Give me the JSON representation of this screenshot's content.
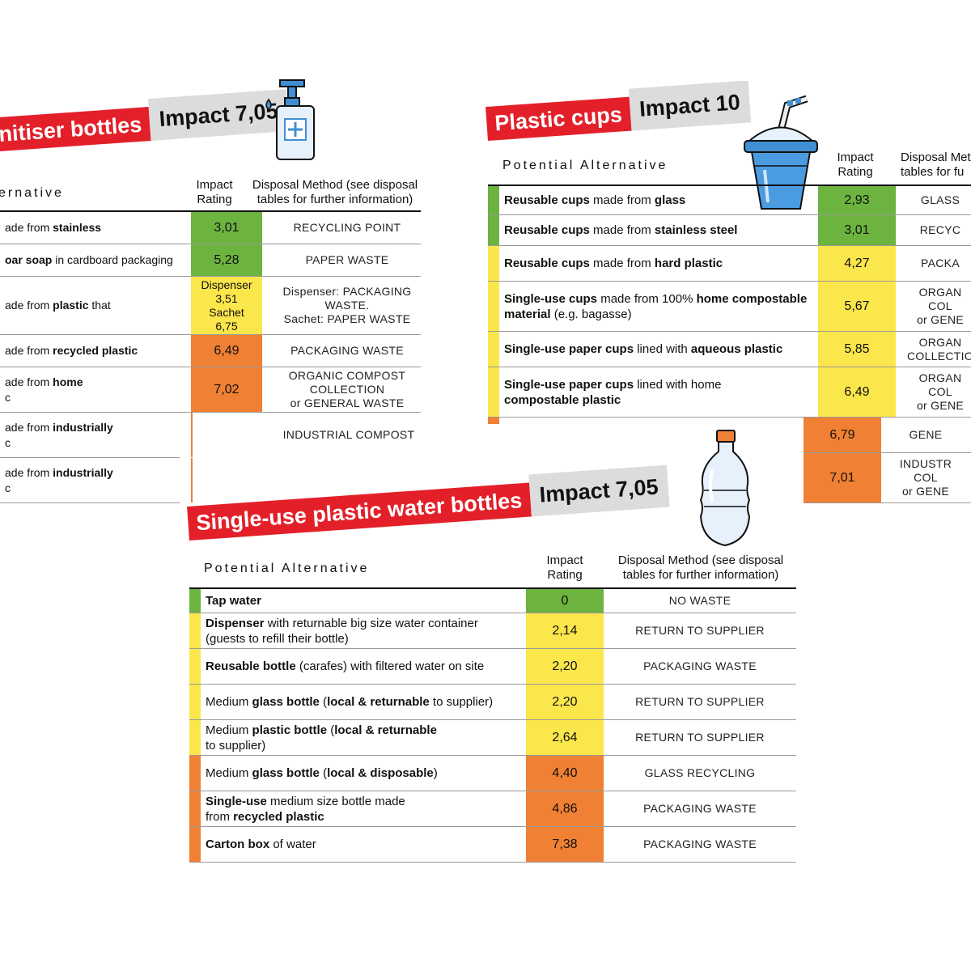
{
  "colors": {
    "green": "#6cb33f",
    "yellow": "#fbe64b",
    "orange": "#f08033",
    "red": "#e3202a",
    "grey": "#dcdcdc"
  },
  "sanitiser": {
    "title": "nitiser bottles",
    "impact": "Impact 7,05",
    "header_alt": "ernative",
    "header_rating": "Impact\nRating",
    "header_disposal": "Disposal Method (see disposal\ntables for further information)",
    "rows": [
      {
        "pre": "ade from ",
        "bold": "stainless",
        "post": "",
        "line2": "",
        "rating": "3,01",
        "level": "green",
        "disposal": "RECYCLING POINT"
      },
      {
        "pre": "",
        "bold": "oar soap",
        "post": " in cardboard packaging",
        "line2": "",
        "rating": "5,28",
        "level": "green",
        "disposal": "PAPER WASTE"
      },
      {
        "pre": "ade from ",
        "bold": "plastic",
        "post": " that",
        "line2": "",
        "rating": "Dispenser\n3,51\nSachet\n6,75",
        "level": "yellow",
        "disposal": "Dispenser: PACKAGING WASTE.\nSachet: PAPER WASTE"
      },
      {
        "pre": "ade from ",
        "bold": "recycled plastic",
        "post": "",
        "line2": "",
        "rating": "6,49",
        "level": "orange",
        "disposal": "PACKAGING WASTE"
      },
      {
        "pre": "ade from  ",
        "bold": "home",
        "post": "",
        "line2": "c",
        "rating": "7,02",
        "level": "orange",
        "disposal": "ORGANIC COMPOST\nCOLLECTION\nor GENERAL WASTE"
      },
      {
        "pre": "ade from ",
        "bold": "industrially",
        "post": "",
        "line2": "c",
        "rating": "",
        "level": "orange",
        "disposal": "INDUSTRIAL COMPOST"
      },
      {
        "pre": "ade from ",
        "bold": "industrially",
        "post": "",
        "line2": "c",
        "rating": "",
        "level": "orange",
        "disposal": ""
      }
    ]
  },
  "cups": {
    "title": "Plastic cups",
    "impact": "Impact 10",
    "header_alt": "Potential Alternative",
    "header_rating": "Impact\nRating",
    "header_disposal": "Disposal Met\ntables for fu",
    "rows": [
      {
        "pre": "",
        "bold": "Reusable cups",
        "mid": " made from ",
        "bold2": "glass",
        "post": "",
        "line2": "",
        "rating": "2,93",
        "level": "green",
        "disposal": "GLASS"
      },
      {
        "pre": "",
        "bold": "Reusable cups",
        "mid": " made from ",
        "bold2": "stainless steel",
        "post": "",
        "line2": "",
        "rating": "3,01",
        "level": "green",
        "disposal": "RECYC"
      },
      {
        "pre": "",
        "bold": "Reusable cups",
        "mid": " made from ",
        "bold2": "hard plastic",
        "post": "",
        "line2": "",
        "rating": "4,27",
        "level": "yellow",
        "disposal": "PACKA"
      },
      {
        "pre": "",
        "bold": "Single-use cups",
        "mid": " made from 100% ",
        "bold2": "home compostable",
        "post": "",
        "line2b": "material",
        "line2": " (e.g. bagasse)",
        "rating": "5,67",
        "level": "yellow",
        "disposal": "ORGAN\nCOL\nor GENE"
      },
      {
        "pre": "",
        "bold": "Single-use paper cups",
        "mid": " lined with ",
        "bold2": "aqueous plastic",
        "post": "",
        "line2": "",
        "rating": "5,85",
        "level": "yellow",
        "disposal": "ORGAN\nCOLLECTIO"
      },
      {
        "pre": "",
        "bold": "Single-use paper cups",
        "mid": " lined with home",
        "bold2": "",
        "post": "",
        "line2b": "compostable plastic",
        "line2": "",
        "rating": "6,49",
        "level": "yellow",
        "disposal": "ORGAN\nCOL\nor GENE"
      },
      {
        "rating": "6,79",
        "level": "orange",
        "disposal": "GENE"
      },
      {
        "rating": "7,01",
        "level": "orange",
        "disposal": "INDUSTR\nCOL\nor GENE"
      }
    ]
  },
  "water": {
    "title": "Single-use plastic water bottles",
    "impact": "Impact 7,05",
    "header_alt": "Potential Alternative",
    "header_rating": "Impact\nRating",
    "header_disposal": "Disposal Method (see disposal\ntables for further information)",
    "rows": [
      {
        "html_parts": [
          [
            "b",
            "Tap water"
          ]
        ],
        "line2": "",
        "rating": "0",
        "level": "green",
        "disposal": "NO WASTE"
      },
      {
        "html_parts": [
          [
            "b",
            "Dispenser"
          ],
          [
            "n",
            " with returnable big size water container"
          ]
        ],
        "line2": "(guests to refill their bottle)",
        "rating": "2,14",
        "level": "yellow",
        "disposal": "RETURN TO SUPPLIER"
      },
      {
        "html_parts": [
          [
            "b",
            "Reusable bottle"
          ],
          [
            "n",
            " (carafes) with filtered water on site"
          ]
        ],
        "line2": "",
        "rating": "2,20",
        "level": "yellow",
        "disposal": "PACKAGING WASTE"
      },
      {
        "html_parts": [
          [
            "n",
            "Medium "
          ],
          [
            "b",
            "glass bottle"
          ],
          [
            "n",
            " ("
          ],
          [
            "b",
            "local & returnable"
          ],
          [
            "n",
            " to supplier)"
          ]
        ],
        "line2": "",
        "rating": "2,20",
        "level": "yellow",
        "disposal": "RETURN TO SUPPLIER"
      },
      {
        "html_parts": [
          [
            "n",
            "Medium "
          ],
          [
            "b",
            "plastic bottle"
          ],
          [
            "n",
            " ("
          ],
          [
            "b",
            "local & returnable"
          ]
        ],
        "line2": "to supplier)",
        "rating": "2,64",
        "level": "yellow",
        "disposal": "RETURN TO SUPPLIER"
      },
      {
        "html_parts": [
          [
            "n",
            "Medium "
          ],
          [
            "b",
            "glass bottle"
          ],
          [
            "n",
            " ("
          ],
          [
            "b",
            "local & disposable"
          ],
          [
            "n",
            ")"
          ]
        ],
        "line2": "",
        "rating": "4,40",
        "level": "orange",
        "disposal": "GLASS RECYCLING"
      },
      {
        "html_parts": [
          [
            "b",
            "Single-use"
          ],
          [
            "n",
            " medium size bottle made"
          ]
        ],
        "line2_parts": [
          [
            "n",
            "from "
          ],
          [
            "b",
            "recycled plastic"
          ]
        ],
        "rating": "4,86",
        "level": "orange",
        "disposal": "PACKAGING WASTE"
      },
      {
        "html_parts": [
          [
            "b",
            "Carton box"
          ],
          [
            "n",
            " of water"
          ]
        ],
        "line2": "",
        "rating": "7,38",
        "level": "orange",
        "disposal": "PACKAGING WASTE"
      }
    ]
  }
}
